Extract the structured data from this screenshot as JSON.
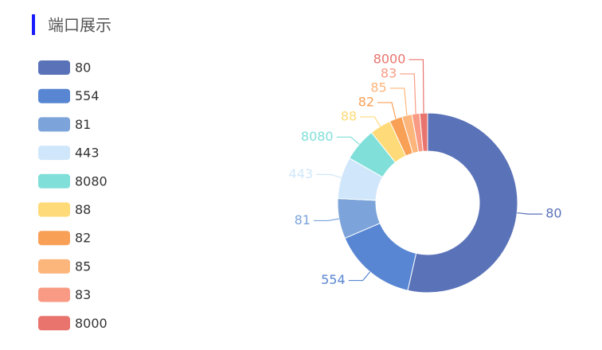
{
  "chart_data": {
    "type": "donut",
    "title": "端口展示",
    "categories": [
      "80",
      "554",
      "81",
      "443",
      "8080",
      "88",
      "82",
      "85",
      "83",
      "8000"
    ],
    "values": [
      535,
      150,
      72,
      75,
      60,
      38,
      23,
      18,
      14,
      14
    ],
    "colors": [
      "#5a72b8",
      "#5886d2",
      "#7ca4da",
      "#d0e7fb",
      "#80dfd9",
      "#fedb78",
      "#f9a057",
      "#fcb67b",
      "#f99b84",
      "#e9746e"
    ],
    "legend": "left"
  }
}
